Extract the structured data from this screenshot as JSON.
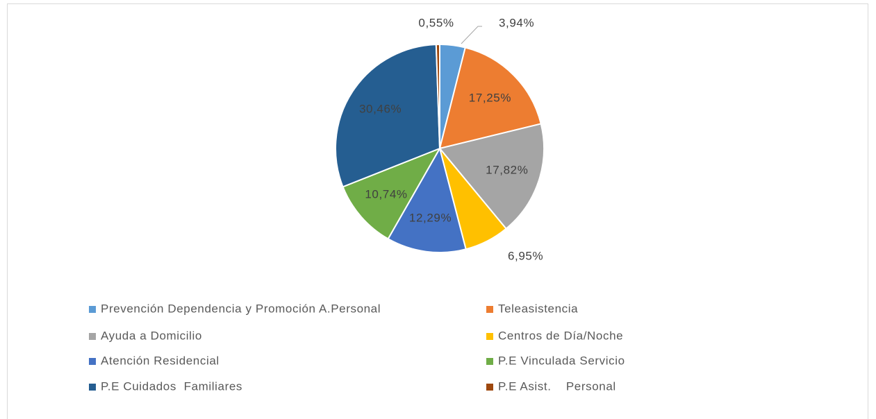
{
  "chart_data": {
    "type": "pie",
    "categories": [
      "Prevención Dependencia y Promoción A.Personal",
      "Teleasistencia",
      "Ayuda a Domicilio",
      "Centros de Día/Noche",
      "Atención Residencial",
      "P.E Vinculada Servicio",
      "P.E Cuidados  Familiares",
      "P.E Asist.    Personal"
    ],
    "values": [
      3.94,
      17.25,
      17.82,
      6.95,
      12.29,
      10.74,
      30.46,
      0.55
    ],
    "value_labels": [
      "3,94%",
      "17,25%",
      "17,82%",
      "6,95%",
      "12,29%",
      "10,74%",
      "30,46%",
      "0,55%"
    ],
    "colors": [
      "#5b9bd5",
      "#ed7d31",
      "#a5a5a5",
      "#ffc000",
      "#4472c4",
      "#70ad47",
      "#255e91",
      "#9e480e"
    ],
    "legend": "bottom"
  }
}
